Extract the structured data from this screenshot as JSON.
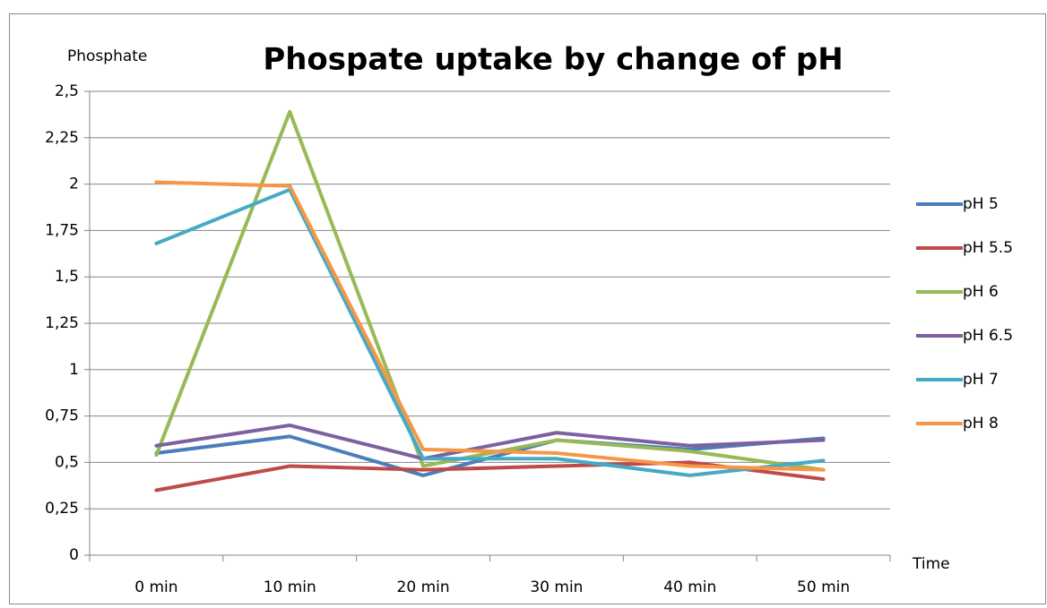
{
  "chart_data": {
    "type": "line",
    "title": "Phospate uptake by change of pH",
    "y_label": "Phosphate",
    "x_label": "Time",
    "categories": [
      "0 min",
      "10 min",
      "20 min",
      "30 min",
      "40 min",
      "50 min"
    ],
    "series": [
      {
        "name": "pH 5",
        "color": "#4a7ebb",
        "values": [
          0.55,
          0.64,
          0.43,
          0.62,
          0.57,
          0.63
        ]
      },
      {
        "name": "pH 5.5",
        "color": "#be4b48",
        "values": [
          0.35,
          0.48,
          0.46,
          0.48,
          0.5,
          0.41
        ]
      },
      {
        "name": "pH 6",
        "color": "#98b954",
        "values": [
          0.54,
          2.39,
          0.48,
          0.62,
          0.56,
          0.46
        ]
      },
      {
        "name": "pH 6.5",
        "color": "#7d60a0",
        "values": [
          0.59,
          0.7,
          0.52,
          0.66,
          0.59,
          0.62
        ]
      },
      {
        "name": "pH 7",
        "color": "#46aac5",
        "values": [
          1.68,
          1.97,
          0.52,
          0.52,
          0.43,
          0.51
        ]
      },
      {
        "name": "pH 8",
        "color": "#f79646",
        "values": [
          2.01,
          1.99,
          0.57,
          0.55,
          0.48,
          0.46
        ]
      }
    ],
    "ylim": [
      0,
      2.5
    ],
    "yticks": [
      0,
      {
        "value": 0.25,
        "label": "0,25"
      },
      {
        "value": 0.5,
        "label": "0,5"
      },
      {
        "value": 0.75,
        "label": "0,75"
      },
      1,
      {
        "value": 1.25,
        "label": "1,25"
      },
      {
        "value": 1.5,
        "label": "1,5"
      },
      {
        "value": 1.75,
        "label": "1,75"
      },
      2,
      {
        "value": 2.25,
        "label": "2,25"
      },
      {
        "value": 2.5,
        "label": "2,5"
      }
    ],
    "grid": true,
    "legend": "right"
  }
}
